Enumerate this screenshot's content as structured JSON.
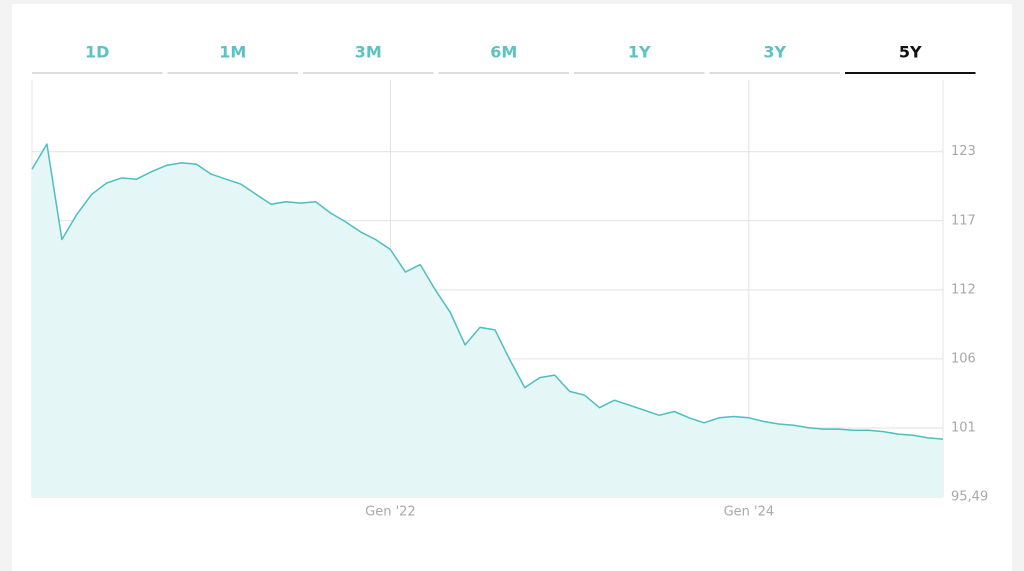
{
  "tabs": [
    "1D",
    "1M",
    "3M",
    "6M",
    "1Y",
    "3Y",
    "5Y"
  ],
  "selected_tab": 6,
  "chart_data": {
    "type": "area",
    "color": "#4cbfbf",
    "fill": "#e5f6f6",
    "grid": true,
    "x": [
      "2020-01",
      "2020-02",
      "2020-03",
      "2020-04",
      "2020-05",
      "2020-06",
      "2020-07",
      "2020-08",
      "2020-09",
      "2020-10",
      "2020-11",
      "2020-12",
      "2021-01",
      "2021-02",
      "2021-03",
      "2021-04",
      "2021-05",
      "2021-06",
      "2021-07",
      "2021-08",
      "2021-09",
      "2021-10",
      "2021-11",
      "2021-12",
      "2022-01",
      "2022-02",
      "2022-03",
      "2022-04",
      "2022-05",
      "2022-06",
      "2022-07",
      "2022-08",
      "2022-09",
      "2022-10",
      "2022-11",
      "2022-12",
      "2023-01",
      "2023-02",
      "2023-03",
      "2023-04",
      "2023-05",
      "2023-06",
      "2023-07",
      "2023-08",
      "2023-09",
      "2023-10",
      "2023-11",
      "2023-12",
      "2024-01",
      "2024-02",
      "2024-03",
      "2024-04",
      "2024-05",
      "2024-06",
      "2024-07",
      "2024-08",
      "2024-09",
      "2024-10",
      "2024-11",
      "2024-12",
      "2025-01",
      "2025-02"
    ],
    "values": [
      121.6,
      123.6,
      116.0,
      118.0,
      119.6,
      120.5,
      120.9,
      120.8,
      121.4,
      121.9,
      122.1,
      122.0,
      121.2,
      120.8,
      120.4,
      119.6,
      118.8,
      119.0,
      118.9,
      119.0,
      118.1,
      117.4,
      116.6,
      116.0,
      115.2,
      113.4,
      114.0,
      112.0,
      110.2,
      107.6,
      109.0,
      108.8,
      106.4,
      104.2,
      105.0,
      105.2,
      103.9,
      103.6,
      102.6,
      103.2,
      102.8,
      102.4,
      102.0,
      102.3,
      101.8,
      101.4,
      101.8,
      101.9,
      101.8,
      101.5,
      101.3,
      101.2,
      101.0,
      100.9,
      100.9,
      100.8,
      100.8,
      100.7,
      100.5,
      100.4,
      100.2,
      100.1
    ],
    "xlim": [
      "2020-01",
      "2025-02"
    ],
    "xticks": [
      {
        "value": "2022-01",
        "label": "Gen '22"
      },
      {
        "value": "2024-01",
        "label": "Gen '24"
      }
    ],
    "ylim": [
      95.49,
      128.7
    ],
    "yticks": [
      {
        "value": 95.49,
        "label": "95,49"
      },
      {
        "value": 100.99,
        "label": "101"
      },
      {
        "value": 106.49,
        "label": "106"
      },
      {
        "value": 111.99,
        "label": "112"
      },
      {
        "value": 117.49,
        "label": "117"
      },
      {
        "value": 122.99,
        "label": "123"
      }
    ]
  }
}
